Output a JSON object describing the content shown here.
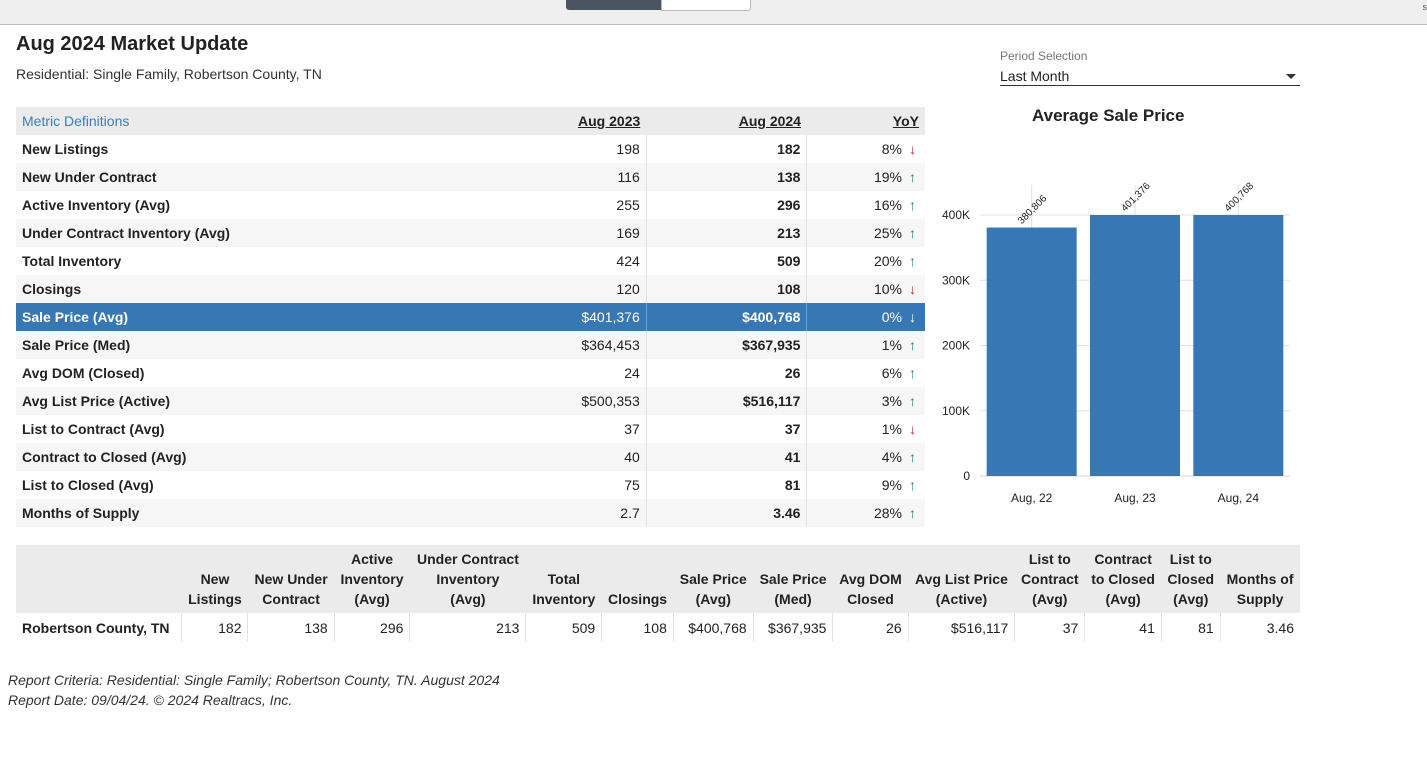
{
  "top_bar": {
    "corner_text": "s"
  },
  "header": {
    "title": "Aug 2024 Market Update",
    "subtitle": "Residential: Single Family, Robertson County, TN"
  },
  "period": {
    "label": "Period Selection",
    "value": "Last Month",
    "icon": "chevron-down-icon"
  },
  "metrics": {
    "definitions_link": "Metric Definitions",
    "col_prev": "Aug 2023",
    "col_cur": "Aug 2024",
    "col_yoy": "YoY",
    "rows": [
      {
        "name": "New Listings",
        "prev": "198",
        "cur": "182",
        "yoy": "8%",
        "dir": "down"
      },
      {
        "name": "New Under Contract",
        "prev": "116",
        "cur": "138",
        "yoy": "19%",
        "dir": "up"
      },
      {
        "name": "Active Inventory (Avg)",
        "prev": "255",
        "cur": "296",
        "yoy": "16%",
        "dir": "up"
      },
      {
        "name": "Under Contract Inventory (Avg)",
        "prev": "169",
        "cur": "213",
        "yoy": "25%",
        "dir": "up"
      },
      {
        "name": "Total Inventory",
        "prev": "424",
        "cur": "509",
        "yoy": "20%",
        "dir": "up"
      },
      {
        "name": "Closings",
        "prev": "120",
        "cur": "108",
        "yoy": "10%",
        "dir": "down"
      },
      {
        "name": "Sale Price (Avg)",
        "prev": "$401,376",
        "cur": "$400,768",
        "yoy": "0%",
        "dir": "down",
        "selected": true
      },
      {
        "name": "Sale Price (Med)",
        "prev": "$364,453",
        "cur": "$367,935",
        "yoy": "1%",
        "dir": "up"
      },
      {
        "name": "Avg DOM (Closed)",
        "prev": "24",
        "cur": "26",
        "yoy": "6%",
        "dir": "up"
      },
      {
        "name": "Avg List Price (Active)",
        "prev": "$500,353",
        "cur": "$516,117",
        "yoy": "3%",
        "dir": "up"
      },
      {
        "name": "List to Contract (Avg)",
        "prev": "37",
        "cur": "37",
        "yoy": "1%",
        "dir": "down"
      },
      {
        "name": "Contract to Closed (Avg)",
        "prev": "40",
        "cur": "41",
        "yoy": "4%",
        "dir": "up"
      },
      {
        "name": "List to Closed (Avg)",
        "prev": "75",
        "cur": "81",
        "yoy": "9%",
        "dir": "up"
      },
      {
        "name": "Months of Supply",
        "prev": "2.7",
        "cur": "3.46",
        "yoy": "28%",
        "dir": "up"
      }
    ]
  },
  "chart_data": {
    "type": "bar",
    "title": "Average Sale Price",
    "categories": [
      "Aug, 22",
      "Aug, 23",
      "Aug, 24"
    ],
    "values": [
      380806,
      401376,
      400768
    ],
    "data_labels": [
      "380,806",
      "401,376",
      "400,768"
    ],
    "ylim": [
      0,
      400000
    ],
    "yticks": [
      0,
      100000,
      200000,
      300000,
      400000
    ],
    "ytick_labels": [
      "0",
      "100K",
      "200K",
      "300K",
      "400K"
    ],
    "bar_color": "#3778b4",
    "grid": true
  },
  "summary": {
    "headers": [
      [
        "New",
        "Listings"
      ],
      [
        "New Under",
        "Contract"
      ],
      [
        "Active",
        "Inventory",
        "(Avg)"
      ],
      [
        "Under Contract",
        "Inventory",
        "(Avg)"
      ],
      [
        "Total",
        "Inventory"
      ],
      [
        "Closings"
      ],
      [
        "Sale Price",
        "(Avg)"
      ],
      [
        "Sale Price",
        "(Med)"
      ],
      [
        "Avg DOM",
        "Closed"
      ],
      [
        "Avg List Price",
        "(Active)"
      ],
      [
        "List to",
        "Contract",
        "(Avg)"
      ],
      [
        "Contract",
        "to Closed",
        "(Avg)"
      ],
      [
        "List to",
        "Closed",
        "(Avg)"
      ],
      [
        "Months of",
        "Supply"
      ]
    ],
    "row": {
      "region": "Robertson County, TN",
      "values": [
        "182",
        "138",
        "296",
        "213",
        "509",
        "108",
        "$400,768",
        "$367,935",
        "26",
        "$516,117",
        "37",
        "41",
        "81",
        "3.46"
      ]
    }
  },
  "footer": {
    "criteria": "Report Criteria: Residential: Single Family; Robertson County, TN. August 2024",
    "date": "Report Date: 09/04/24. © 2024 Realtracs, Inc."
  },
  "colors": {
    "accent": "#3778b4",
    "up": "#1a8f5c",
    "down": "#c2262e",
    "link": "#3a7ebf"
  }
}
